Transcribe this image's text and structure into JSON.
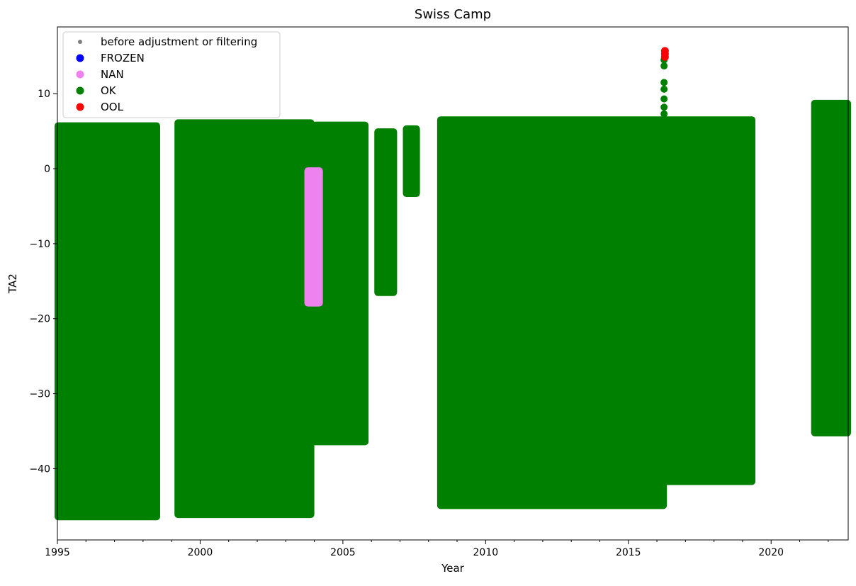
{
  "chart_data": {
    "type": "scatter",
    "title": "Swiss Camp",
    "xlabel": "Year",
    "ylabel": "TA2",
    "xlim": [
      1995.0,
      2022.7
    ],
    "ylim": [
      -49.5,
      18.9
    ],
    "x_ticks": [
      1995,
      2000,
      2005,
      2010,
      2015,
      2020
    ],
    "x_tick_labels": [
      "1995",
      "2000",
      "2005",
      "2010",
      "2015",
      "2020"
    ],
    "y_ticks": [
      -40,
      -30,
      -20,
      -10,
      0,
      10
    ],
    "y_tick_labels": [
      "−40",
      "−30",
      "−20",
      "−10",
      "0",
      "10"
    ],
    "grid": false,
    "legend_position": "top-left",
    "legend": [
      {
        "label": "before adjustment or filtering",
        "color": "#808080",
        "marker": "small-dot"
      },
      {
        "label": "FROZEN",
        "color": "#0000ff",
        "marker": "dot"
      },
      {
        "label": "NAN",
        "color": "#ee82ee",
        "marker": "dot"
      },
      {
        "label": "OK",
        "color": "#008000",
        "marker": "dot"
      },
      {
        "label": "OOL",
        "color": "#ff0000",
        "marker": "dot"
      }
    ],
    "series": [
      {
        "name": "OK",
        "color": "#008000",
        "segments": [
          {
            "start": 1995.0,
            "end": 1998.5,
            "min": -46.5,
            "max": 5.8
          },
          {
            "start": 1999.2,
            "end": 2003.9,
            "min": -46.2,
            "max": 6.2
          },
          {
            "start": 2004.0,
            "end": 2005.8,
            "min": -36.5,
            "max": 5.9
          },
          {
            "start": 2006.2,
            "end": 2006.8,
            "min": -16.6,
            "max": 5.0
          },
          {
            "start": 2007.2,
            "end": 2007.6,
            "min": -3.4,
            "max": 5.4
          },
          {
            "start": 2008.4,
            "end": 2016.25,
            "min": -45.0,
            "max": 6.6
          },
          {
            "start": 2016.3,
            "end": 2019.35,
            "min": -41.8,
            "max": 6.6
          },
          {
            "start": 2021.5,
            "end": 2022.7,
            "min": -35.3,
            "max": 8.8
          }
        ],
        "spikes": [
          {
            "x": 2016.25,
            "values": [
              14.5,
              13.7,
              11.5,
              10.6,
              9.3,
              8.2,
              7.3
            ]
          },
          {
            "x": 2019.3,
            "values": [
              6.5,
              4.6,
              4.4
            ]
          },
          {
            "x": 2022.65,
            "values": [
              8.7,
              8.0,
              6.0
            ]
          }
        ]
      },
      {
        "name": "NAN",
        "color": "#ee82ee",
        "segments": [
          {
            "start": 2003.75,
            "end": 2004.2,
            "min": -18.0,
            "max": -0.2
          }
        ]
      },
      {
        "name": "OOL",
        "color": "#ff0000",
        "points": [
          {
            "x": 2016.28,
            "y": 15.7
          },
          {
            "x": 2016.28,
            "y": 15.3
          },
          {
            "x": 2016.28,
            "y": 14.9
          }
        ]
      },
      {
        "name": "FROZEN",
        "color": "#0000ff",
        "points": []
      },
      {
        "name": "before adjustment or filtering",
        "color": "#808080",
        "points": []
      }
    ]
  }
}
